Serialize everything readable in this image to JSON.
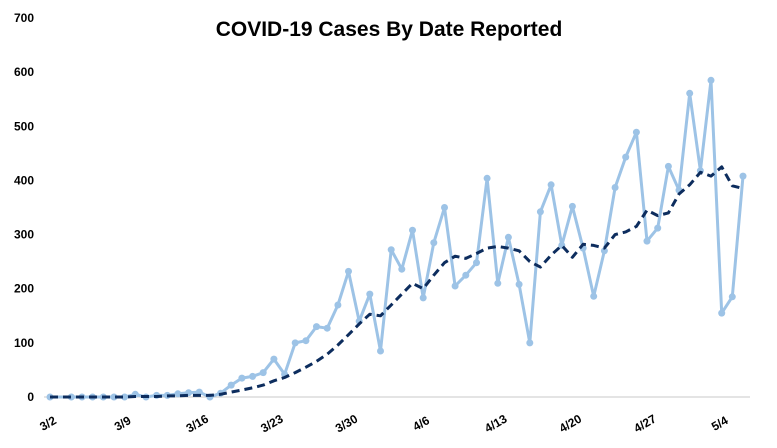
{
  "chart_data": {
    "type": "line",
    "title": "COVID-19 Cases By Date Reported",
    "xlabel": "",
    "ylabel": "",
    "ylim": [
      0,
      700
    ],
    "yticks": [
      0,
      100,
      200,
      300,
      400,
      500,
      600,
      700
    ],
    "x_tick_labels": [
      "3/2",
      "3/9",
      "3/16",
      "3/23",
      "3/30",
      "4/6",
      "4/13",
      "4/20",
      "4/27",
      "5/4"
    ],
    "x_tick_day_index": [
      0,
      7,
      14,
      21,
      28,
      35,
      42,
      49,
      56,
      63
    ],
    "grid": false,
    "legend": "none",
    "series": [
      {
        "style": "solid-markers",
        "color": "#9dc3e6",
        "x": [
          0,
          2,
          3,
          4,
          5,
          6,
          7,
          8,
          9,
          10,
          11,
          12,
          13,
          14,
          15,
          16,
          17,
          18,
          19,
          20,
          21,
          22,
          23,
          24,
          25,
          26,
          27,
          28,
          29,
          30,
          31,
          32,
          33,
          34,
          35,
          36,
          37,
          38,
          39,
          40,
          41,
          42,
          43,
          44,
          45,
          46,
          47,
          48,
          49,
          50,
          51,
          52,
          53,
          54,
          55,
          56,
          57,
          58,
          59,
          60,
          61,
          62,
          63,
          64,
          65
        ],
        "values": [
          0,
          0,
          0,
          0,
          0,
          0,
          0,
          5,
          0,
          3,
          3,
          6,
          8,
          9,
          0,
          7,
          22,
          35,
          38,
          45,
          70,
          42,
          100,
          104,
          130,
          127,
          170,
          232,
          140,
          190,
          85,
          272,
          236,
          308,
          183,
          285,
          350,
          205,
          225,
          248,
          404,
          210,
          295,
          208,
          100,
          342,
          392,
          280,
          352,
          275,
          186,
          270,
          387,
          443,
          489,
          288,
          312,
          426,
          382,
          561,
          418,
          585,
          155,
          185,
          408
        ]
      },
      {
        "style": "dashed",
        "color": "#0d2d5e",
        "x": [
          0,
          2,
          3,
          4,
          5,
          6,
          7,
          8,
          9,
          10,
          11,
          12,
          13,
          14,
          15,
          16,
          17,
          18,
          19,
          20,
          21,
          22,
          23,
          24,
          25,
          26,
          27,
          28,
          29,
          30,
          31,
          32,
          33,
          34,
          35,
          36,
          37,
          38,
          39,
          40,
          41,
          42,
          43,
          44,
          45,
          46,
          47,
          48,
          49,
          50,
          51,
          52,
          53,
          54,
          55,
          56,
          57,
          58,
          59,
          60,
          61,
          62,
          63,
          64,
          65
        ],
        "values": [
          0,
          0,
          0,
          0,
          0,
          0,
          0,
          1,
          1,
          1,
          2,
          2,
          3,
          3,
          3,
          5,
          9,
          13,
          17,
          22,
          30,
          36,
          45,
          55,
          66,
          79,
          96,
          115,
          135,
          153,
          150,
          170,
          190,
          210,
          200,
          225,
          248,
          260,
          256,
          265,
          275,
          278,
          275,
          270,
          250,
          240,
          262,
          280,
          258,
          282,
          280,
          275,
          300,
          305,
          315,
          345,
          335,
          340,
          375,
          392,
          415,
          408,
          425,
          390,
          385
        ]
      }
    ]
  }
}
